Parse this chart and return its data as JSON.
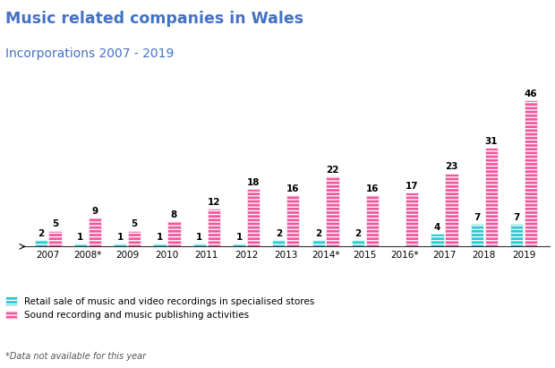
{
  "title_line1": "Music related companies in Wales",
  "title_line2": "Incorporations 2007 - 2019",
  "footnote": "*Data not available for this year",
  "categories": [
    "2007",
    "2008*",
    "2009",
    "2010",
    "2011",
    "2012",
    "2013",
    "2014*",
    "2015",
    "2016*",
    "2017",
    "2018",
    "2019"
  ],
  "retail_values": [
    2,
    1,
    1,
    1,
    1,
    1,
    2,
    2,
    2,
    null,
    4,
    7,
    7
  ],
  "sound_values": [
    5,
    9,
    5,
    8,
    12,
    18,
    16,
    22,
    16,
    17,
    23,
    31,
    46
  ],
  "retail_color": "#29c8d2",
  "sound_color": "#f0589e",
  "title_color": "#4472c4",
  "label_color": "#000000",
  "legend_retail": "Retail sale of music and video recordings in specialised stores",
  "legend_sound": "Sound recording and music publishing activities",
  "ylim": [
    0,
    52
  ],
  "bar_width": 0.32,
  "background_color": "#ffffff"
}
